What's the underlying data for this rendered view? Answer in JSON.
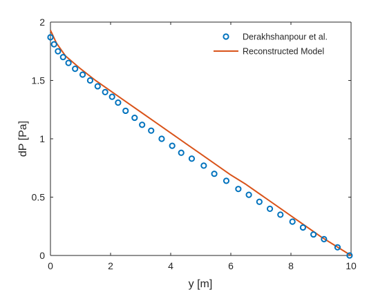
{
  "chart_data": {
    "type": "line",
    "title": "",
    "xlabel": "y [m]",
    "ylabel": "dP [Pa]",
    "xlim": [
      0,
      10
    ],
    "ylim": [
      0,
      2
    ],
    "xticks": [
      0,
      2,
      4,
      6,
      8,
      10
    ],
    "yticks": [
      0,
      0.5,
      1,
      1.5,
      2
    ],
    "xtick_labels": [
      "0",
      "2",
      "4",
      "6",
      "8",
      "10"
    ],
    "ytick_labels": [
      "0",
      "0.5",
      "1",
      "1.5",
      "2"
    ],
    "grid": false,
    "legend_position": "top-right",
    "series": [
      {
        "name": "Derakhshanpour et al.",
        "style": "markers",
        "marker": "circle-open",
        "color": "#0072BD",
        "x": [
          0.0,
          0.12,
          0.25,
          0.42,
          0.6,
          0.82,
          1.07,
          1.32,
          1.57,
          1.82,
          2.05,
          2.25,
          2.5,
          2.8,
          3.05,
          3.35,
          3.7,
          4.05,
          4.35,
          4.7,
          5.1,
          5.45,
          5.85,
          6.25,
          6.6,
          6.95,
          7.3,
          7.65,
          8.05,
          8.4,
          8.75,
          9.1,
          9.55,
          9.95
        ],
        "y": [
          1.87,
          1.81,
          1.75,
          1.7,
          1.65,
          1.6,
          1.55,
          1.5,
          1.45,
          1.4,
          1.36,
          1.31,
          1.24,
          1.18,
          1.12,
          1.07,
          1.0,
          0.94,
          0.88,
          0.83,
          0.77,
          0.7,
          0.64,
          0.57,
          0.52,
          0.46,
          0.4,
          0.35,
          0.29,
          0.24,
          0.18,
          0.14,
          0.07,
          0.0
        ]
      },
      {
        "name": "Reconstructed Model",
        "style": "line",
        "color": "#D95319",
        "x": [
          0.0,
          0.2,
          0.5,
          1.0,
          1.5,
          2.0,
          2.5,
          3.0,
          3.5,
          4.0,
          4.5,
          5.0,
          5.5,
          6.0,
          6.5,
          7.0,
          7.5,
          8.0,
          8.5,
          9.0,
          9.5,
          10.0
        ],
        "y": [
          1.93,
          1.82,
          1.71,
          1.6,
          1.5,
          1.41,
          1.32,
          1.23,
          1.14,
          1.05,
          0.96,
          0.87,
          0.78,
          0.69,
          0.61,
          0.52,
          0.43,
          0.34,
          0.25,
          0.16,
          0.08,
          0.0
        ]
      }
    ]
  }
}
